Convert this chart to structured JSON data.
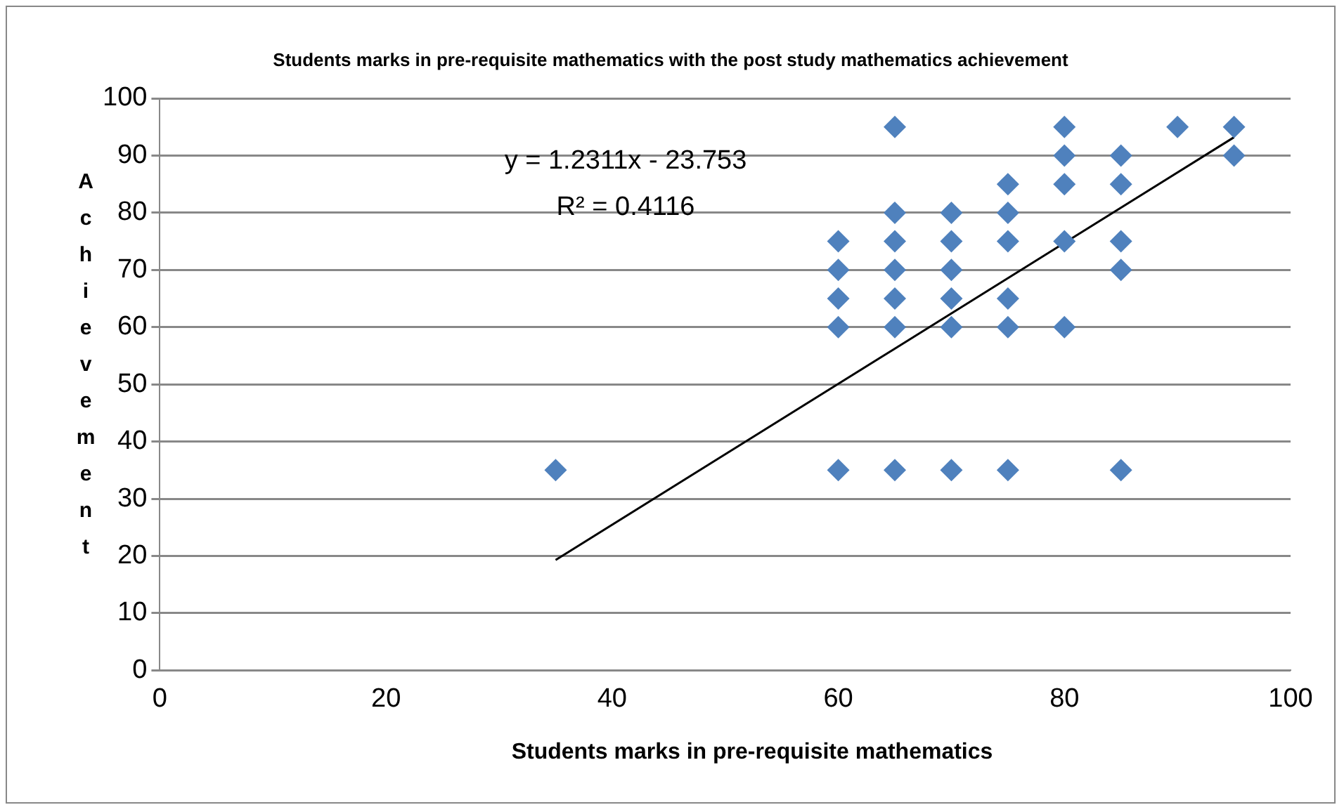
{
  "chart_data": {
    "type": "scatter",
    "title": "Students marks in pre-requisite mathematics with the post study mathematics achievement",
    "xlabel": "Students marks in pre-requisite mathematics",
    "ylabel": "Achievement",
    "annotations": [
      "y = 1.2311x - 23.753",
      "R² = 0.4116"
    ],
    "series": [
      {
        "type": "scatter",
        "color": "#4f81bd",
        "marker": "diamond",
        "x": [
          35,
          60,
          60,
          60,
          60,
          60,
          65,
          65,
          65,
          65,
          65,
          65,
          65,
          70,
          70,
          70,
          70,
          70,
          70,
          75,
          75,
          75,
          75,
          75,
          75,
          80,
          80,
          80,
          80,
          80,
          85,
          85,
          85,
          85,
          85,
          90,
          95,
          95
        ],
        "values": [
          35,
          35,
          60,
          65,
          70,
          75,
          35,
          60,
          65,
          70,
          75,
          80,
          95,
          35,
          60,
          65,
          70,
          75,
          80,
          35,
          60,
          65,
          75,
          80,
          85,
          60,
          75,
          85,
          90,
          95,
          35,
          70,
          75,
          85,
          90,
          95,
          90,
          95
        ]
      },
      {
        "type": "line",
        "color": "#000000",
        "marker": "none",
        "line_style": "solid",
        "x": [
          35,
          95
        ],
        "values": [
          19.3,
          93.2
        ]
      }
    ],
    "xlim": [
      0,
      100
    ],
    "xticks": [
      0,
      20,
      40,
      60,
      80,
      100
    ],
    "ylim": [
      0,
      100
    ],
    "yticks": [
      0,
      10,
      20,
      30,
      40,
      50,
      60,
      70,
      80,
      90,
      100
    ],
    "grid": "y",
    "legend": false
  }
}
